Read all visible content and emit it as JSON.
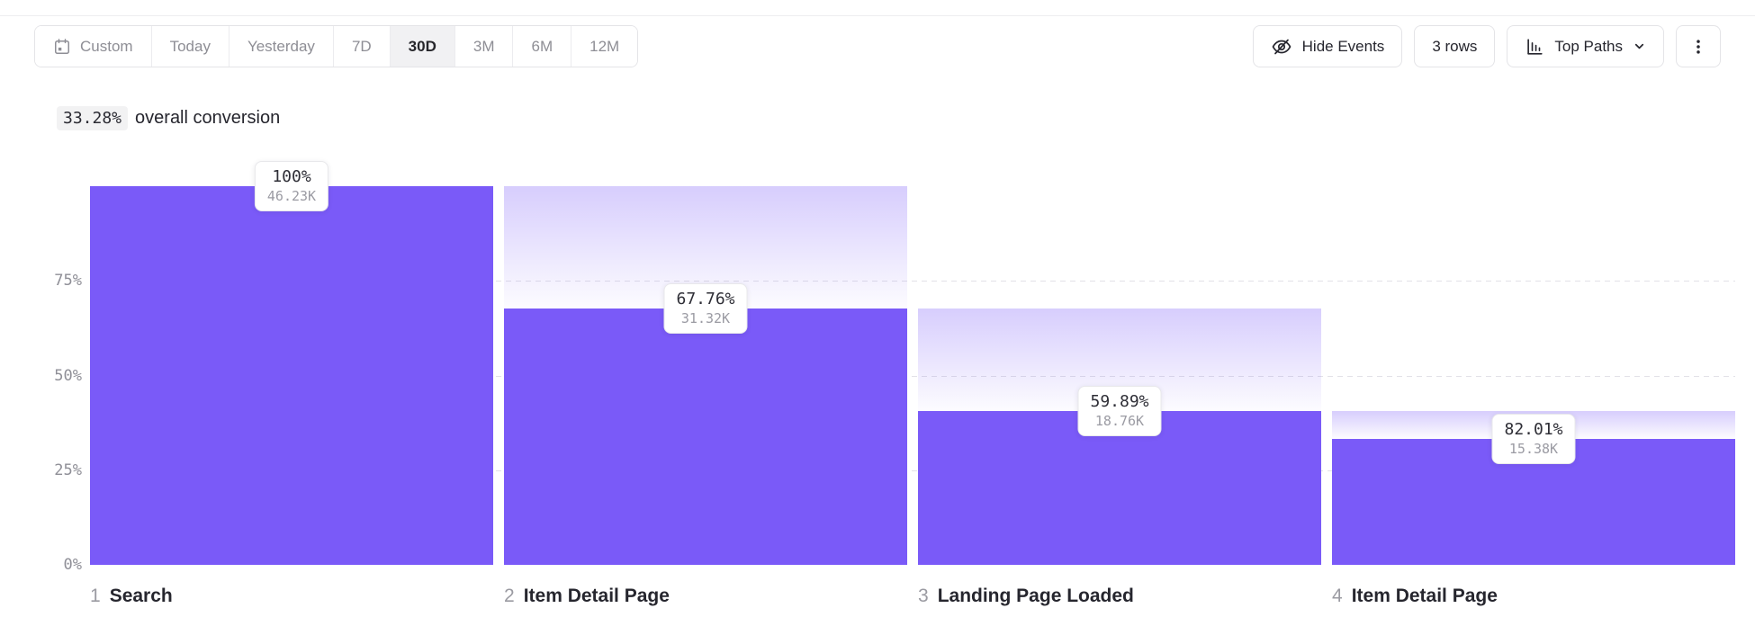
{
  "toolbar": {
    "date_ranges": [
      {
        "label": "Custom",
        "icon": "calendar-icon",
        "selected": false
      },
      {
        "label": "Today",
        "selected": false
      },
      {
        "label": "Yesterday",
        "selected": false
      },
      {
        "label": "7D",
        "selected": false
      },
      {
        "label": "30D",
        "selected": true
      },
      {
        "label": "3M",
        "selected": false
      },
      {
        "label": "6M",
        "selected": false
      },
      {
        "label": "12M",
        "selected": false
      }
    ],
    "hide_events_label": "Hide Events",
    "rows_label": "3 rows",
    "top_paths_label": "Top Paths"
  },
  "icons": {
    "custom_range": "calendar-icon",
    "hide_events": "eye-off-icon",
    "top_paths": "bar-chart-icon",
    "top_paths_caret": "chevron-down-icon",
    "more_options": "kebab-menu-icon"
  },
  "summary": {
    "conversion_value": "33.28%",
    "conversion_text": "overall conversion"
  },
  "chart_data": {
    "type": "bar",
    "subtype": "funnel",
    "title": "33.28% overall conversion",
    "ylim": [
      0,
      100
    ],
    "grid": "dashed horizontal at 25/50/75",
    "legend": "none",
    "y_ticks": [
      {
        "label": "75%",
        "value": 75,
        "gridline": true
      },
      {
        "label": "50%",
        "value": 50,
        "gridline": true
      },
      {
        "label": "25%",
        "value": 25,
        "gridline": true
      },
      {
        "label": "0%",
        "value": 0,
        "gridline": false
      }
    ],
    "categories": [
      "Search",
      "Item Detail Page",
      "Landing Page Loaded",
      "Item Detail Page"
    ],
    "steps": [
      {
        "index": 1,
        "label": "Search",
        "pct_of_previous": "100%",
        "count_label": "46.23K",
        "count": 46230,
        "pct_of_total": 100
      },
      {
        "index": 2,
        "label": "Item Detail Page",
        "pct_of_previous": "67.76%",
        "count_label": "31.32K",
        "count": 31320,
        "pct_of_total": 67.76
      },
      {
        "index": 3,
        "label": "Landing Page Loaded",
        "pct_of_previous": "59.89%",
        "count_label": "18.76K",
        "count": 18760,
        "pct_of_total": 40.58
      },
      {
        "index": 4,
        "label": "Item Detail Page",
        "pct_of_previous": "82.01%",
        "count_label": "15.38K",
        "count": 15380,
        "pct_of_total": 33.27
      }
    ]
  },
  "colors": {
    "accent_purple": "#7A5AF8",
    "dropoff_gradient_top": "rgba(122,90,248,0.30)",
    "dropoff_gradient_bottom": "rgba(122,90,248,0.02)",
    "gridline": "#E2E1E7",
    "text_dark": "#26262E",
    "text_gray": "#8F8F97",
    "selected_segment_bg": "#F1F1F3",
    "badge_bg": "#F2F2F3",
    "border": "#E4E4E7"
  }
}
